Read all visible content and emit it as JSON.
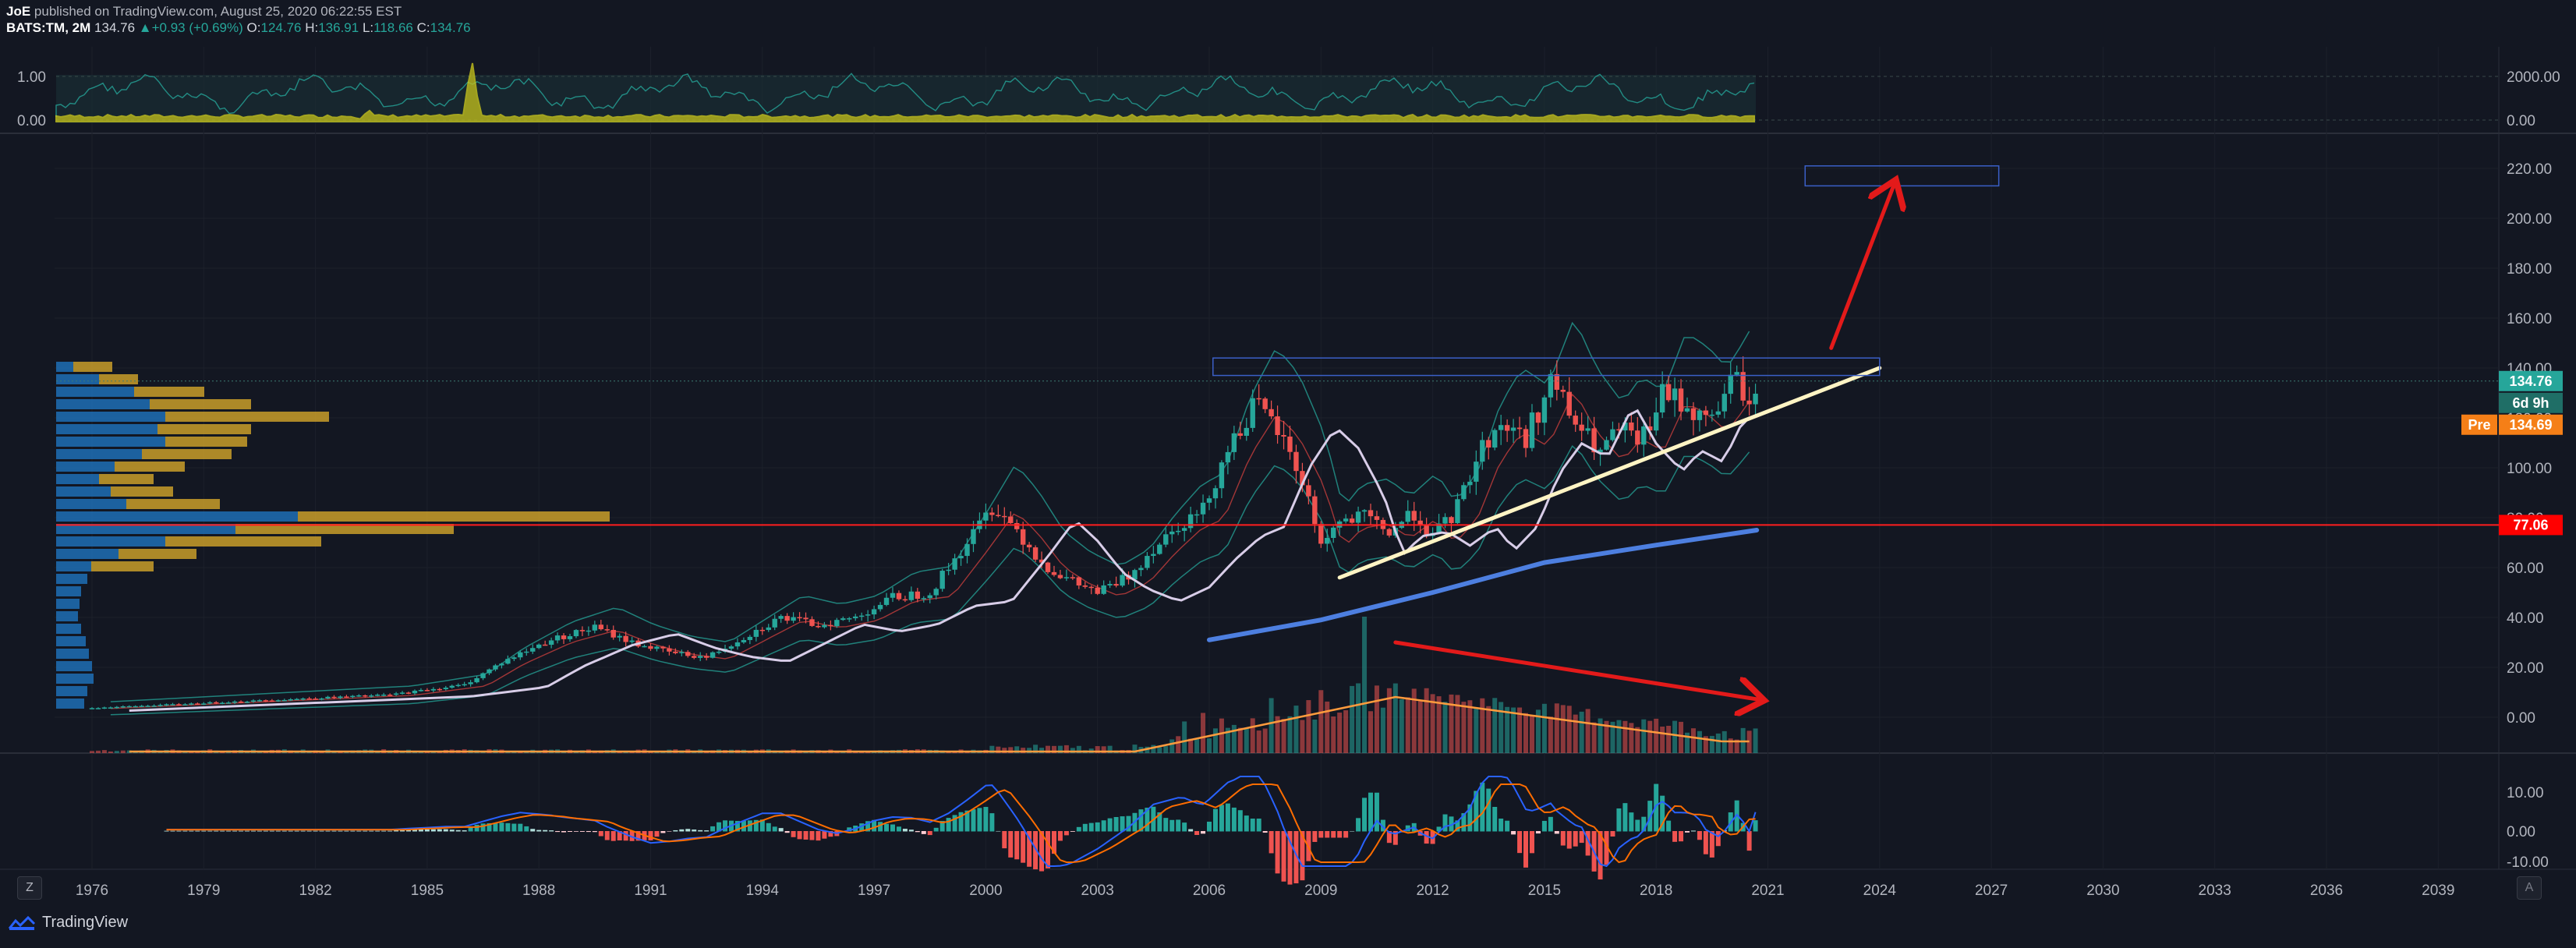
{
  "header": {
    "author": "JoE",
    "published": " published on TradingView.com, August 25, 2020 06:22:55 EST",
    "symbol": "BATS:TM, 2M",
    "last": "134.76",
    "change": "+0.93 (+0.69%)",
    "o_label": "O:",
    "o_value": "124.76",
    "h_label": "H:",
    "h_value": "136.91",
    "l_label": "L:",
    "l_value": "118.66",
    "c_label": "C:",
    "c_value": "134.76"
  },
  "footer": {
    "brand": "TradingView",
    "z_button": "Z",
    "a_button": "A"
  },
  "colors": {
    "bg": "#131722",
    "up": "#26a69a",
    "down": "#ef5350",
    "pre": "#f57f17",
    "level": "#ff0000"
  },
  "chart_data": [
    {
      "type": "area",
      "panel": "top-indicator",
      "left_axis_ticks": [
        "1.00",
        "0.00"
      ],
      "right_axis_ticks": [
        "2000.00",
        "0.00"
      ]
    },
    {
      "type": "candlestick",
      "panel": "price",
      "symbol": "BATS:TM",
      "interval": "2M",
      "x_ticks": [
        "1976",
        "1979",
        "1982",
        "1985",
        "1988",
        "1991",
        "1994",
        "1997",
        "2000",
        "2003",
        "2006",
        "2009",
        "2012",
        "2015",
        "2018",
        "2021",
        "2024",
        "2027",
        "2030",
        "2033",
        "2036",
        "2039"
      ],
      "y_ticks": [
        "220.00",
        "200.00",
        "180.00",
        "160.00",
        "140.00",
        "120.00",
        "100.00",
        "80.00",
        "60.00",
        "40.00",
        "20.00",
        "0.00"
      ],
      "close_path": [
        {
          "x": 1975.0,
          "y": 3
        },
        {
          "x": 1978.0,
          "y": 5
        },
        {
          "x": 1981.0,
          "y": 7
        },
        {
          "x": 1984.0,
          "y": 9
        },
        {
          "x": 1986.0,
          "y": 13
        },
        {
          "x": 1987.0,
          "y": 22
        },
        {
          "x": 1988.3,
          "y": 31
        },
        {
          "x": 1989.5,
          "y": 36
        },
        {
          "x": 1990.5,
          "y": 30
        },
        {
          "x": 1991.5,
          "y": 26
        },
        {
          "x": 1992.5,
          "y": 24
        },
        {
          "x": 1993.5,
          "y": 32
        },
        {
          "x": 1994.5,
          "y": 40
        },
        {
          "x": 1995.5,
          "y": 37
        },
        {
          "x": 1996.5,
          "y": 40
        },
        {
          "x": 1997.5,
          "y": 48
        },
        {
          "x": 1998.5,
          "y": 50
        },
        {
          "x": 1999.5,
          "y": 70
        },
        {
          "x": 2000.2,
          "y": 85
        },
        {
          "x": 2000.8,
          "y": 76
        },
        {
          "x": 2001.5,
          "y": 62
        },
        {
          "x": 2002.2,
          "y": 55
        },
        {
          "x": 2003.0,
          "y": 50
        },
        {
          "x": 2003.8,
          "y": 56
        },
        {
          "x": 2004.5,
          "y": 68
        },
        {
          "x": 2005.2,
          "y": 78
        },
        {
          "x": 2005.8,
          "y": 82
        },
        {
          "x": 2006.5,
          "y": 108
        },
        {
          "x": 2007.2,
          "y": 125
        },
        {
          "x": 2007.8,
          "y": 116
        },
        {
          "x": 2008.5,
          "y": 95
        },
        {
          "x": 2009.0,
          "y": 70
        },
        {
          "x": 2009.5,
          "y": 78
        },
        {
          "x": 2010.2,
          "y": 80
        },
        {
          "x": 2010.8,
          "y": 74
        },
        {
          "x": 2011.5,
          "y": 82
        },
        {
          "x": 2012.0,
          "y": 72
        },
        {
          "x": 2012.6,
          "y": 82
        },
        {
          "x": 2013.2,
          "y": 105
        },
        {
          "x": 2013.8,
          "y": 118
        },
        {
          "x": 2014.5,
          "y": 112
        },
        {
          "x": 2015.2,
          "y": 135
        },
        {
          "x": 2015.8,
          "y": 118
        },
        {
          "x": 2016.5,
          "y": 106
        },
        {
          "x": 2017.0,
          "y": 115
        },
        {
          "x": 2017.6,
          "y": 110
        },
        {
          "x": 2018.2,
          "y": 130
        },
        {
          "x": 2018.8,
          "y": 125
        },
        {
          "x": 2019.3,
          "y": 118
        },
        {
          "x": 2019.8,
          "y": 128
        },
        {
          "x": 2020.2,
          "y": 138
        },
        {
          "x": 2020.5,
          "y": 122
        },
        {
          "x": 2020.7,
          "y": 134.76
        }
      ],
      "moving_average_long": [
        {
          "x": 2006.0,
          "y": 31
        },
        {
          "x": 2009.0,
          "y": 39
        },
        {
          "x": 2012.0,
          "y": 50
        },
        {
          "x": 2015.0,
          "y": 62
        },
        {
          "x": 2018.0,
          "y": 69
        },
        {
          "x": 2020.7,
          "y": 75
        }
      ],
      "drawn_trendline": [
        {
          "x": 2009.5,
          "y": 56
        },
        {
          "x": 2024.0,
          "y": 140
        }
      ],
      "resistance_box": [
        {
          "x": 2006.1,
          "y": 137
        },
        {
          "x": 2024.0,
          "y": 144
        }
      ],
      "target_box": [
        {
          "x": 2022.0,
          "y": 213
        },
        {
          "x": 2027.2,
          "y": 221
        }
      ],
      "arrows": [
        {
          "from": {
            "x": 2022.7,
            "y": 148
          },
          "to": {
            "x": 2024.4,
            "y": 214
          }
        },
        {
          "from": {
            "x": 2011.0,
            "y": 30
          },
          "to": {
            "x": 2020.8,
            "y": 7
          }
        }
      ],
      "horizontal_level": 77.06,
      "price_labels": {
        "last": "134.76",
        "countdown": "6d 9h",
        "pre_label": "Pre",
        "pre": "134.69",
        "level": "77.06"
      }
    },
    {
      "type": "bar",
      "panel": "macd",
      "y_ticks": [
        "10.00",
        "0.00",
        "-10.00"
      ]
    }
  ]
}
